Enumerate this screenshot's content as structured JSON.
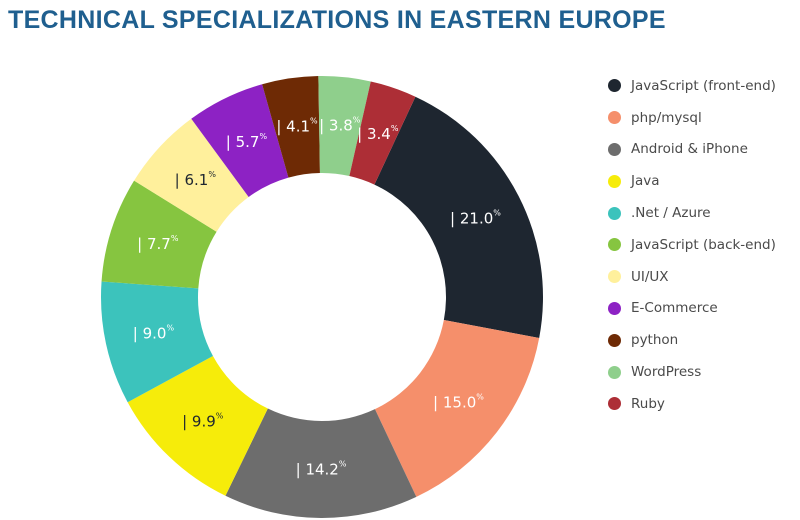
{
  "chart_data": {
    "type": "pie",
    "title": "TECHNICAL SPECIALIZATIONS IN EASTERN EUROPE",
    "categories": [
      "JavaScript (front-end)",
      "php/mysql",
      "Android & iPhone",
      "Java",
      ".Net / Azure",
      "JavaScript (back-end)",
      "UI/UX",
      "E-Commerce",
      "python",
      "WordPress",
      "Ruby"
    ],
    "values": [
      21.0,
      15.0,
      14.2,
      9.9,
      9.0,
      7.7,
      6.1,
      5.7,
      4.1,
      3.8,
      3.4
    ],
    "value_labels": [
      "| 21.0",
      "| 15.0",
      "| 14.2",
      "| 9.9",
      "| 9.0",
      "| 7.7",
      "| 6.1",
      "| 5.7",
      "| 4.1",
      "| 3.8",
      "| 3.4"
    ],
    "value_unit": "%",
    "colors": [
      "#1e2630",
      "#f58f6b",
      "#6d6d6d",
      "#f6ec0a",
      "#3cc3bc",
      "#86c540",
      "#fff09c",
      "#8d22c4",
      "#6e2a05",
      "#8fcf8c",
      "#ad2e36"
    ],
    "label_text_dark": [
      false,
      false,
      false,
      true,
      false,
      false,
      true,
      false,
      false,
      false,
      false
    ],
    "legend_placement": "right",
    "donut": true
  }
}
